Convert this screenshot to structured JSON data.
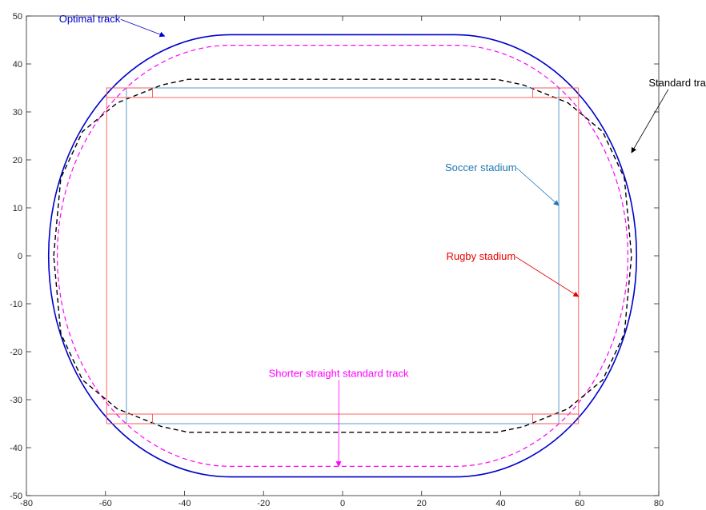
{
  "chart_data": {
    "type": "line",
    "title": "",
    "xlabel": "",
    "ylabel": "",
    "xlim": [
      -80,
      80
    ],
    "ylim": [
      -50,
      50
    ],
    "xticks": [
      -80,
      -60,
      -40,
      -20,
      0,
      20,
      40,
      60,
      80
    ],
    "yticks": [
      -50,
      -40,
      -30,
      -20,
      -10,
      0,
      10,
      20,
      30,
      40,
      50
    ],
    "grid": false,
    "series": [
      {
        "name": "Optimal track",
        "color": "#0000cc",
        "dash": "solid",
        "shape": "stadium",
        "straight_half_length": 28.3,
        "radius": 46.1
      },
      {
        "name": "Shorter straight standard track",
        "color": "#ff00ff",
        "dash": "dashed",
        "shape": "stadium",
        "straight_half_length": 28.3,
        "radius": 43.9
      },
      {
        "name": "Standard track",
        "color": "#000000",
        "dash": "dashed",
        "shape": "ellipse_like",
        "x": [
          -73.1,
          -71.3,
          -65.8,
          -57.0,
          -45.8,
          -39.0,
          0,
          39.0,
          45.8,
          57.0,
          65.8,
          71.3,
          73.1,
          71.3,
          65.8,
          57.0,
          45.8,
          39.0,
          0,
          -39.0,
          -45.8,
          -57.0,
          -65.8,
          -71.3,
          -73.1
        ],
        "y": [
          0,
          16.2,
          25.9,
          31.9,
          35.6,
          36.8,
          36.8,
          36.8,
          35.6,
          31.9,
          25.9,
          16.2,
          0,
          -16.2,
          -25.9,
          -31.9,
          -35.6,
          -36.8,
          -36.8,
          -36.8,
          -35.6,
          -31.9,
          -25.9,
          -16.2,
          0
        ]
      },
      {
        "name": "Soccer stadium",
        "color": "#4d8fc2",
        "dash": "solid",
        "shape": "rectangle",
        "x": [
          -54.7,
          54.7
        ],
        "y": [
          -35.0,
          35.0
        ]
      },
      {
        "name": "Rugby stadium",
        "color": "#ff5555",
        "dash": "solid",
        "shape": "rectangle_with_goal_areas",
        "x": [
          -59.7,
          59.7
        ],
        "y": [
          -33.0,
          33.0
        ],
        "goal_area_depth": 11.6,
        "goal_area_top": 35.0
      }
    ],
    "annotations": [
      {
        "text": "Optimal track",
        "color": "#0000cc",
        "text_x": -64,
        "text_y": 49.5,
        "arrow_to_x": -45,
        "arrow_to_y": 45.8
      },
      {
        "text": "Standard track",
        "color": "#000000",
        "text_x": 86,
        "text_y": 36.2,
        "arrow_to_x": 73.1,
        "arrow_to_y": 21.5
      },
      {
        "text": "Soccer stadium",
        "color": "#1f77b4",
        "text_x": 35,
        "text_y": 18.5,
        "arrow_to_x": 54.7,
        "arrow_to_y": 10.5
      },
      {
        "text": "Rugby stadium",
        "color": "#e60000",
        "text_x": 35,
        "text_y": 0,
        "arrow_to_x": 59.7,
        "arrow_to_y": -8.5
      },
      {
        "text": "Shorter straight standard track",
        "color": "#ff00ff",
        "text_x": -1,
        "text_y": -24.4,
        "arrow_to_x": -1,
        "arrow_to_y": -43.9
      }
    ]
  }
}
